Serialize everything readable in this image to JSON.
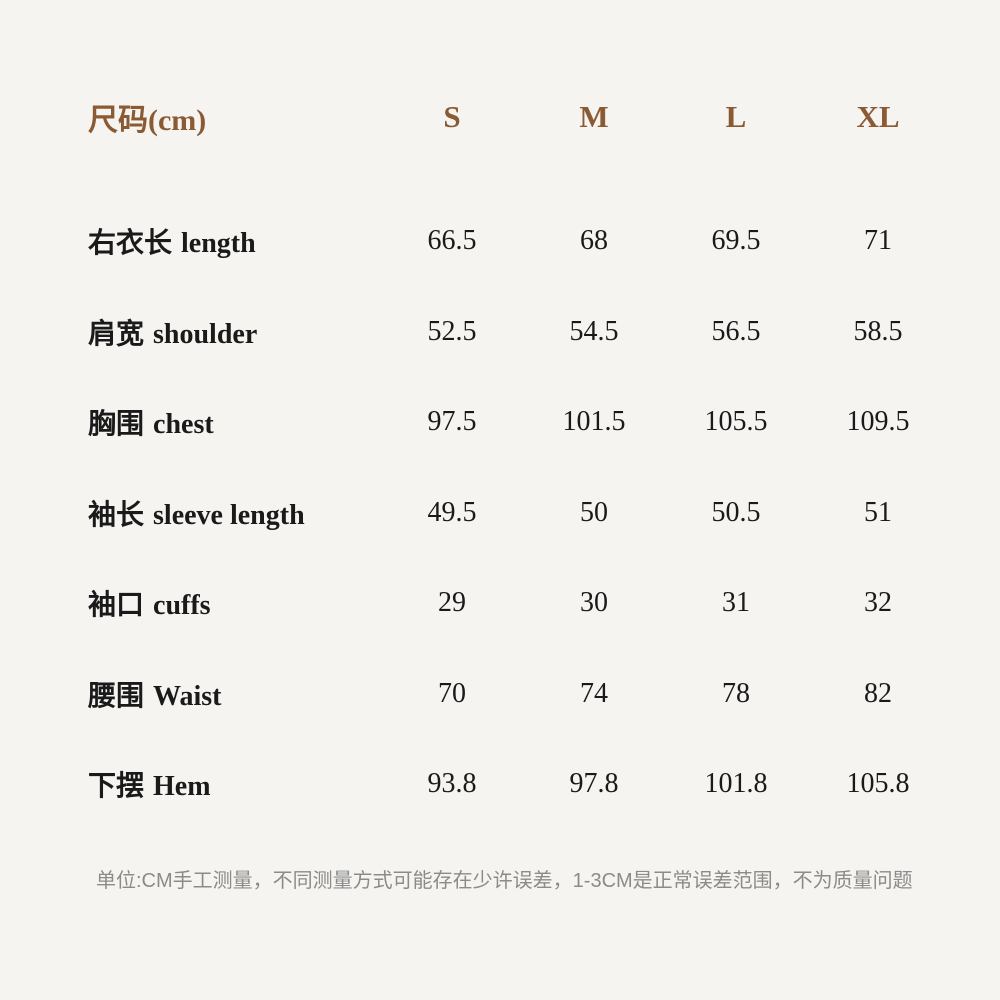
{
  "colors": {
    "background": "#f5f4f1",
    "accent_brown": "#8b5a33",
    "text_black": "#1a1a1a",
    "note_gray": "#8b8b8b"
  },
  "table": {
    "header": {
      "label_zh": "尺码",
      "label_unit": "(cm)",
      "sizes": [
        "S",
        "M",
        "L",
        "XL"
      ]
    },
    "rows": [
      {
        "label_zh": "右衣长",
        "label_en": "length",
        "values": [
          "66.5",
          "68",
          "69.5",
          "71"
        ]
      },
      {
        "label_zh": "肩宽",
        "label_en": "shoulder",
        "values": [
          "52.5",
          "54.5",
          "56.5",
          "58.5"
        ]
      },
      {
        "label_zh": "胸围",
        "label_en": "chest",
        "values": [
          "97.5",
          "101.5",
          "105.5",
          "109.5"
        ]
      },
      {
        "label_zh": "袖长",
        "label_en": "sleeve length",
        "values": [
          "49.5",
          "50",
          "50.5",
          "51"
        ]
      },
      {
        "label_zh": "袖口",
        "label_en": "cuffs",
        "values": [
          "29",
          "30",
          "31",
          "32"
        ]
      },
      {
        "label_zh": "腰围",
        "label_en": "Waist",
        "values": [
          "70",
          "74",
          "78",
          "82"
        ]
      },
      {
        "label_zh": "下摆",
        "label_en": "Hem",
        "values": [
          "93.8",
          "97.8",
          "101.8",
          "105.8"
        ]
      }
    ]
  },
  "footnote": "单位:CM手工测量，不同测量方式可能存在少许误差，1-3CM是正常误差范围，不为质量问题"
}
